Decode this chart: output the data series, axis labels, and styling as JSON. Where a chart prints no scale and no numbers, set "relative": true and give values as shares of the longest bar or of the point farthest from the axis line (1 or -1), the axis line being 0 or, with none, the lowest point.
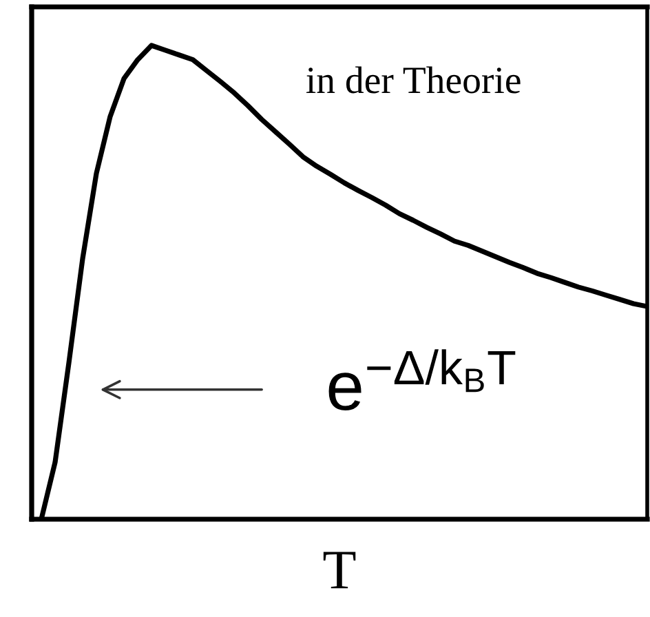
{
  "chart_data": {
    "type": "line",
    "relative": true,
    "xlabel": "T",
    "categories": [
      null,
      null,
      null,
      null,
      null,
      null,
      null,
      null,
      null,
      null,
      null,
      null,
      null,
      null,
      null,
      null,
      null,
      null,
      null,
      null,
      null,
      null,
      null,
      null,
      null,
      null,
      null,
      null,
      null,
      null,
      null,
      null,
      null,
      null,
      null,
      null,
      null,
      null,
      null,
      null,
      null,
      null,
      null,
      null,
      null
    ],
    "series": [
      {
        "color": "#000000",
        "values": [
          0,
          0.12,
          0.33,
          0.55,
          0.73,
          0.85,
          0.93,
          0.97,
          1.0,
          0.99,
          0.98,
          0.97,
          0.947,
          0.924,
          0.9,
          0.873,
          0.844,
          0.818,
          0.792,
          0.765,
          0.745,
          0.728,
          0.71,
          0.694,
          0.679,
          0.663,
          0.645,
          0.631,
          0.616,
          0.602,
          0.587,
          0.578,
          0.566,
          0.554,
          0.542,
          0.531,
          0.519,
          0.51,
          0.5,
          0.49,
          0.482,
          0.473,
          0.464,
          0.455,
          0.449
        ]
      }
    ],
    "annotations": [
      "in der Theorie",
      "e$^{−Δ/k}$$_{B}$$^{T}$"
    ]
  }
}
